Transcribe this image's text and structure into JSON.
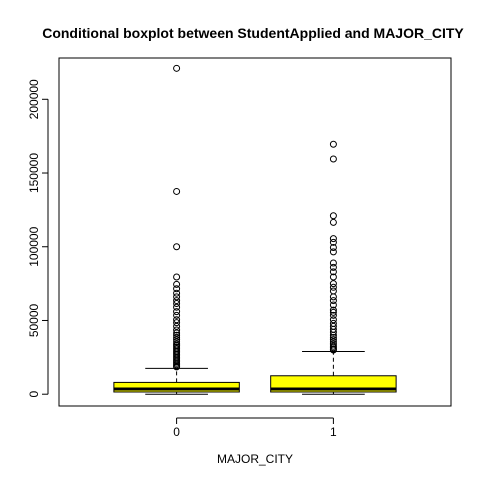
{
  "chart_data": {
    "type": "boxplot",
    "title": "Conditional boxplot between StudentApplied and MAJOR_CITY",
    "xlabel": "MAJOR_CITY",
    "ylabel": "",
    "categories": [
      "0",
      "1"
    ],
    "ylim": [
      -8000,
      228000
    ],
    "y_ticks": [
      0,
      50000,
      100000,
      150000,
      200000
    ],
    "y_tick_labels": [
      "0",
      "50000",
      "100000",
      "150000",
      "200000"
    ],
    "box_fill": "#ffff00",
    "grid": false,
    "legend": "none",
    "boxes": [
      {
        "category": "0",
        "min": 0,
        "q1": 1500,
        "median": 3500,
        "q3": 8000,
        "whisker_high": 17500,
        "outliers": [
          221000,
          137500,
          100000,
          79500,
          74500,
          71500,
          68500,
          66000,
          63500,
          61500,
          59000,
          56000,
          53500,
          50500,
          48500,
          46000,
          43500,
          41500,
          40000,
          38500,
          37000,
          35500,
          34000,
          33000,
          32000,
          31000,
          30000,
          29000,
          28000,
          27000,
          26000,
          25000,
          24000,
          23000,
          22000,
          21000,
          20000,
          19000,
          18500
        ]
      },
      {
        "category": "1",
        "min": 0,
        "q1": 1500,
        "median": 3500,
        "q3": 12500,
        "whisker_high": 29000,
        "outliers": [
          169500,
          159500,
          121000,
          116500,
          105500,
          103000,
          99500,
          96500,
          89000,
          86000,
          83000,
          79500,
          75000,
          72500,
          70000,
          66000,
          63500,
          60500,
          57000,
          55500,
          53500,
          50500,
          48000,
          46000,
          44000,
          42000,
          40000,
          38500,
          37000,
          35500,
          34000,
          32500,
          31500,
          30500,
          30000
        ]
      }
    ]
  }
}
